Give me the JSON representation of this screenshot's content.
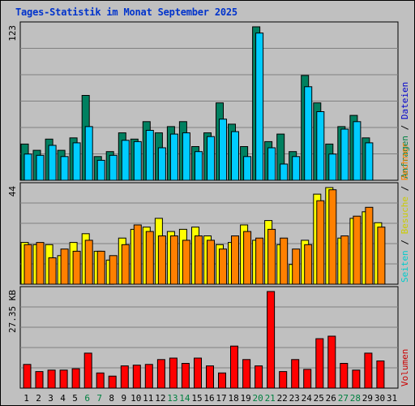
{
  "title": "Tages-Statistik im Monat September 2025",
  "chart_data": {
    "type": "bar",
    "title": "Tages-Statistik im Monat September 2025",
    "days": [
      "1",
      "2",
      "3",
      "4",
      "5",
      "6",
      "7",
      "8",
      "9",
      "10",
      "11",
      "12",
      "13",
      "14",
      "15",
      "16",
      "17",
      "18",
      "19",
      "20",
      "21",
      "22",
      "23",
      "24",
      "25",
      "26",
      "27",
      "28",
      "29",
      "30",
      "31"
    ],
    "weekend_days": [
      "6",
      "7",
      "13",
      "14",
      "20",
      "21",
      "27",
      "28"
    ],
    "weekend_color": "#008040",
    "weekday_color": "#000000",
    "panels": [
      {
        "id": "top",
        "max_label": "123",
        "ylim": [
          0,
          123
        ],
        "legend": [
          {
            "text": "Anfragen",
            "color": "#008040"
          },
          {
            "text": " / ",
            "color": "#000000"
          },
          {
            "text": "Dateien",
            "color": "#0000cc"
          }
        ],
        "series": [
          {
            "name": "Anfragen",
            "color": "#008060",
            "values": [
              29,
              24,
              33,
              24,
              34,
              68,
              19,
              23,
              38,
              33,
              47,
              38,
              43,
              47,
              27,
              38,
              62,
              45,
              27,
              123,
              31,
              37,
              23,
              84,
              62,
              29,
              43,
              52,
              34,
              0,
              0
            ]
          },
          {
            "name": "Dateien",
            "color": "#00ccff",
            "values": [
              21,
              20,
              28,
              19,
              30,
              43,
              16,
              20,
              32,
              31,
              40,
              26,
              37,
              38,
              23,
              35,
              49,
              39,
              19,
              118,
              26,
              13,
              19,
              75,
              55,
              21,
              41,
              47,
              30,
              0,
              0
            ]
          }
        ]
      },
      {
        "id": "middle",
        "max_label": "44",
        "ylim": [
          0,
          44
        ],
        "legend": [
          {
            "text": "Seiten",
            "color": "#00cccc"
          },
          {
            "text": " / ",
            "color": "#000000"
          },
          {
            "text": "Besuche",
            "color": "#cccc00"
          },
          {
            "text": " / ",
            "color": "#000000"
          },
          {
            "text": "Rechner",
            "color": "#ff8000"
          }
        ],
        "series": [
          {
            "name": "Seiten",
            "color": "#00ccff",
            "values": [
              0,
              0,
              0,
              0,
              0,
              0,
              0,
              0,
              0,
              0,
              0,
              0,
              0,
              0,
              0,
              0,
              0,
              0,
              0,
              0,
              0,
              0,
              0,
              0,
              0,
              0,
              0,
              0,
              0,
              0,
              0
            ]
          },
          {
            "name": "Besuche",
            "color": "#ffff00",
            "values": [
              19,
              18,
              18,
              13,
              19,
              23,
              15,
              11,
              21,
              25,
              26,
              30,
              24,
              25,
              26,
              22,
              18,
              19,
              27,
              20,
              29,
              18,
              9,
              20,
              41,
              44,
              21,
              30,
              33,
              28,
              0
            ]
          },
          {
            "name": "Rechner",
            "color": "#ff8000",
            "values": [
              18,
              19,
              12,
              16,
              15,
              20,
              15,
              13,
              18,
              27,
              24,
              22,
              22,
              20,
              22,
              20,
              16,
              22,
              24,
              21,
              25,
              21,
              16,
              18,
              38,
              43,
              22,
              31,
              35,
              26,
              0
            ]
          }
        ]
      },
      {
        "id": "bottom",
        "max_label": "27.35 KB",
        "ylim": [
          0,
          27.35
        ],
        "legend": [
          {
            "text": "Volumen",
            "color": "#cc0000"
          }
        ],
        "series": [
          {
            "name": "Volumen",
            "color": "#ff0000",
            "values": [
              6.7,
              4.7,
              5.1,
              5.1,
              5.5,
              9.9,
              4.3,
              3.4,
              6.3,
              6.5,
              6.7,
              8.1,
              8.5,
              7.0,
              8.5,
              6.3,
              4.3,
              11.9,
              8.1,
              6.3,
              27.35,
              4.7,
              8.1,
              5.3,
              14.0,
              14.7,
              7.0,
              5.1,
              9.9,
              7.7,
              0
            ]
          }
        ]
      }
    ]
  }
}
